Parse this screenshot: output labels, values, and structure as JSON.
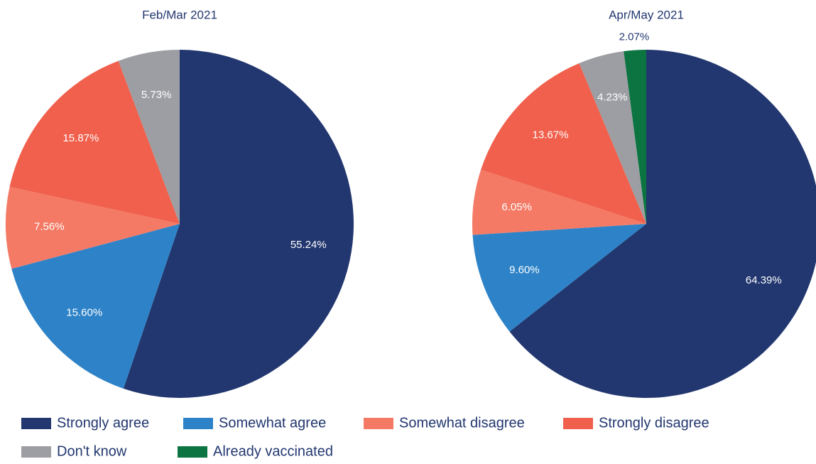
{
  "legend": [
    {
      "name": "Strongly agree",
      "color": "#22376f"
    },
    {
      "name": "Somewhat agree",
      "color": "#2e83c8"
    },
    {
      "name": "Somewhat disagree",
      "color": "#f47a65"
    },
    {
      "name": "Strongly disagree",
      "color": "#f0604d"
    },
    {
      "name": "Don't know",
      "color": "#9c9ea3"
    },
    {
      "name": "Already vaccinated",
      "color": "#0b7440"
    }
  ],
  "chart_data": [
    {
      "type": "pie",
      "title": "Feb/Mar 2021",
      "values": [
        55.24,
        15.6,
        7.56,
        15.87,
        5.73
      ],
      "value_labels": [
        "55.24%",
        "15.60%",
        "7.56%",
        "15.87%",
        "5.73%"
      ]
    },
    {
      "type": "pie",
      "title": "Apr/May 2021",
      "values": [
        64.39,
        9.6,
        6.05,
        13.67,
        4.23,
        2.07
      ],
      "value_labels": [
        "64.39%",
        "9.60%",
        "6.05%",
        "13.67%",
        "4.23%",
        "2.07%"
      ]
    }
  ]
}
